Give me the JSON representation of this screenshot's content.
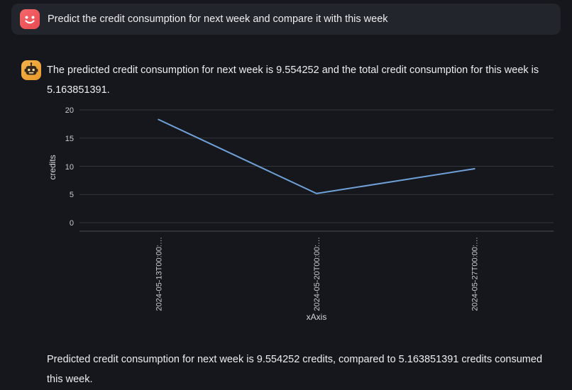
{
  "page": {
    "background_color": "#16171c",
    "bubble_color": "#22252b"
  },
  "user_message": {
    "avatar_icon": "smiley-face-icon",
    "avatar_color": "#ef5a5e",
    "text": "Predict the credit consumption for next week and compare it with this week"
  },
  "assistant_message": {
    "avatar_icon": "robot-icon",
    "avatar_color": "#eda43a",
    "text": "The predicted credit consumption for next week is 9.554252 and the total credit consumption for this week is 5.163851391.",
    "summary": "Predicted credit consumption for next week is 9.554252 credits, compared to 5.163851391 credits consumed this week."
  },
  "chart_data": {
    "type": "line",
    "title": "",
    "xlabel": "xAxis",
    "ylabel": "credits",
    "x": [
      "2024-05-13T00:00:00",
      "2024-05-20T00:00:00",
      "2024-05-27T00:00:00"
    ],
    "x_tick_labels": [
      "2024-05-13T00:00:…",
      "2024-05-20T00:00:…",
      "2024-05-27T00:00:…"
    ],
    "values": [
      18.3,
      5.163851391,
      9.554252
    ],
    "y_ticks": [
      "20",
      "15",
      "10",
      "5",
      "0"
    ],
    "ylim": [
      0,
      20
    ],
    "grid": true,
    "legend_position": "none",
    "line_color": "#6fa0d8"
  }
}
